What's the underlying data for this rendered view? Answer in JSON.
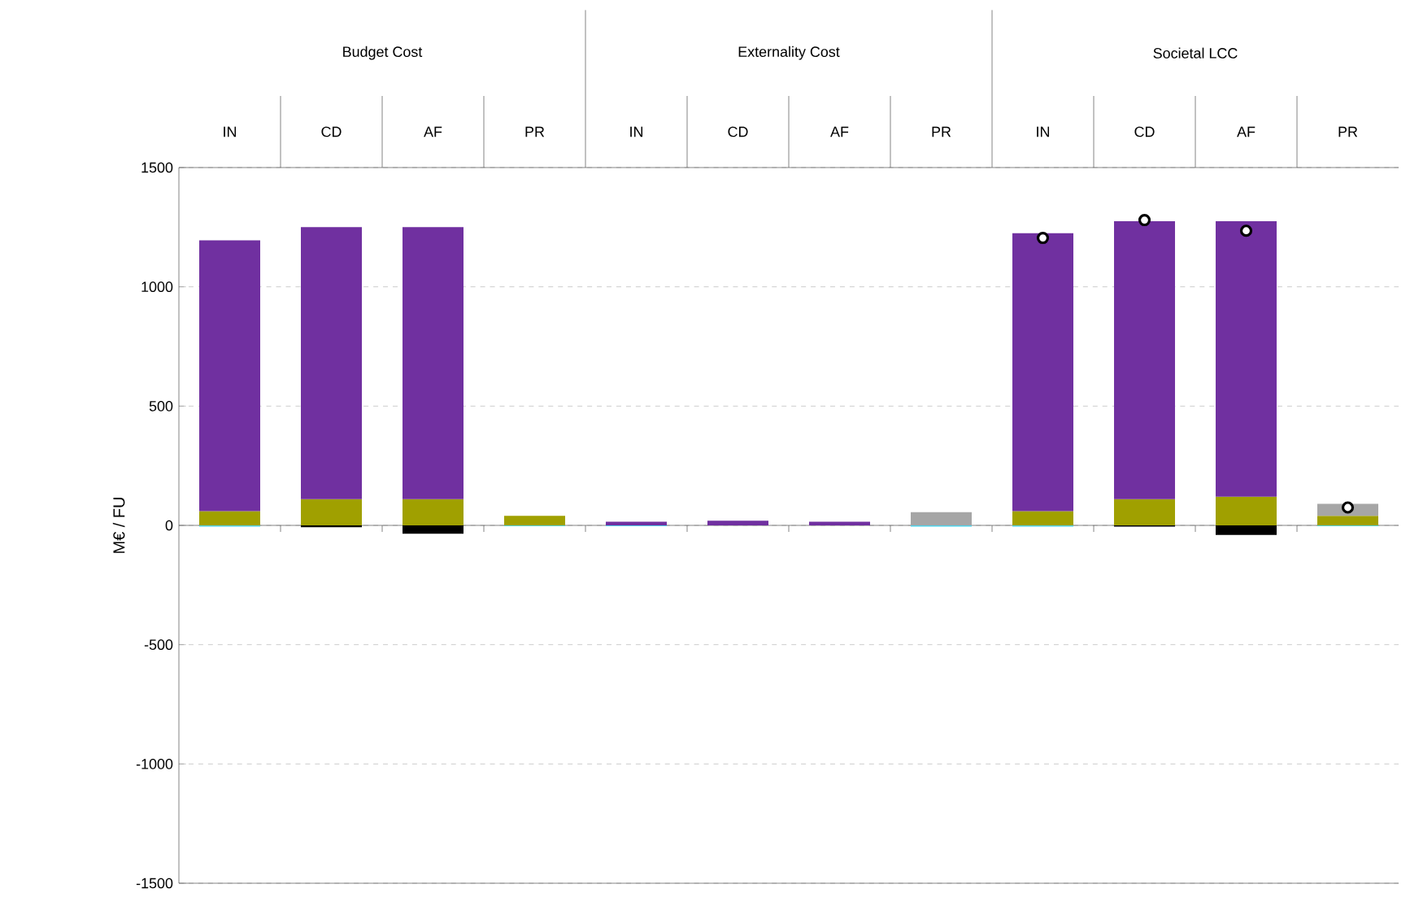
{
  "chart_data": {
    "type": "bar",
    "stacked": true,
    "ylabel": "M€ / FU",
    "categories": [
      "IN",
      "CD",
      "AF",
      "PR",
      "IN",
      "CD",
      "AF",
      "PR",
      "IN",
      "CD",
      "AF",
      "PR"
    ],
    "annotations": [
      "Budget Cost",
      "Externality Cost",
      "Societal LCC"
    ],
    "series": [
      {
        "color": "#a0a000",
        "values": [
          60,
          110,
          110,
          40,
          null,
          null,
          null,
          null,
          60,
          110,
          120,
          40
        ]
      },
      {
        "color": "#7030a0",
        "values": [
          1135,
          1140,
          1140,
          null,
          15,
          20,
          15,
          null,
          1165,
          1165,
          1155,
          null
        ]
      },
      {
        "color": "#a6a6a6",
        "values": [
          null,
          null,
          null,
          null,
          null,
          null,
          null,
          55,
          null,
          null,
          null,
          50
        ]
      },
      {
        "color": "#000000",
        "values": [
          null,
          -8,
          -35,
          null,
          null,
          null,
          null,
          null,
          null,
          -5,
          -40,
          null
        ]
      },
      {
        "color": "#4fd1e8",
        "values": [
          -5,
          null,
          null,
          -3,
          -3,
          null,
          null,
          -5,
          -5,
          null,
          null,
          -3
        ]
      },
      {
        "type": "scatter",
        "color": "#000000",
        "values": [
          null,
          null,
          null,
          null,
          null,
          null,
          null,
          null,
          1205,
          1280,
          1235,
          75
        ]
      }
    ],
    "ylim": [
      -1500,
      1500
    ],
    "yticks": [
      -1500,
      -1000,
      -500,
      0,
      500,
      1000,
      1500
    ],
    "grid": "y",
    "marker": "circle"
  }
}
